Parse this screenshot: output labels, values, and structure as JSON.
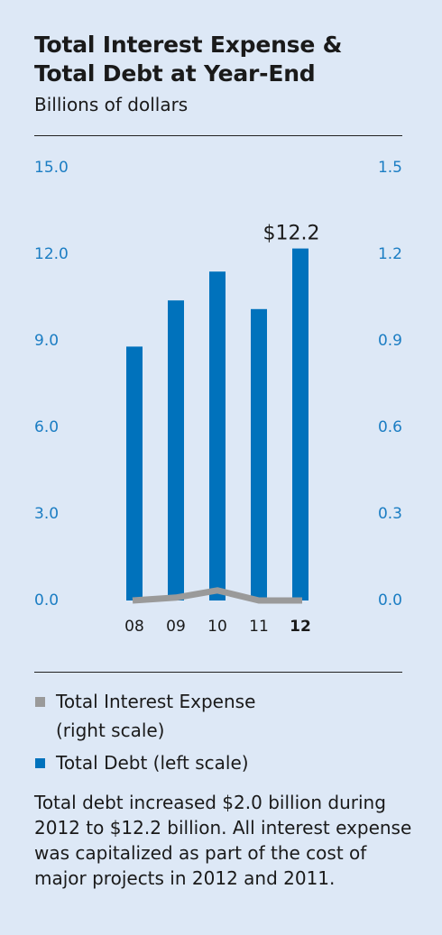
{
  "title_line1": "Total Interest Expense &",
  "title_line2": "Total Debt at Year-End",
  "subtitle": "Billions of dollars",
  "legend": {
    "interest": "Total Interest Expense",
    "interest_sub": "(right scale)",
    "debt": "Total Debt (left scale)"
  },
  "note": "Total debt increased $2.0 billion during 2012 to $12.2 billion. All interest expense was capitalized as part of the cost of major projects in 2012 and 2011.",
  "colors": {
    "debt": "#0072bc",
    "interest": "#9a9a9a",
    "ticks": "#1b7dc3",
    "background": "#dde8f6"
  },
  "chart_data": {
    "type": "bar",
    "categories": [
      "08",
      "09",
      "10",
      "11",
      "12"
    ],
    "highlight_category": "12",
    "series": [
      {
        "name": "Total Debt (left scale)",
        "type": "bar",
        "axis": "left",
        "values": [
          8.8,
          10.4,
          11.4,
          10.1,
          12.2
        ]
      },
      {
        "name": "Total Interest Expense (right scale)",
        "type": "line",
        "axis": "right",
        "values": [
          0.0,
          0.01,
          0.035,
          0.0,
          0.0
        ]
      }
    ],
    "left_ticks": [
      "0.0",
      "3.0",
      "6.0",
      "9.0",
      "12.0",
      "15.0"
    ],
    "right_ticks": [
      "0.0",
      "0.3",
      "0.6",
      "0.9",
      "1.2",
      "1.5"
    ],
    "ylim_left": [
      0,
      15
    ],
    "ylim_right": [
      0,
      1.5
    ],
    "data_label": "$12.2",
    "grid": false
  }
}
